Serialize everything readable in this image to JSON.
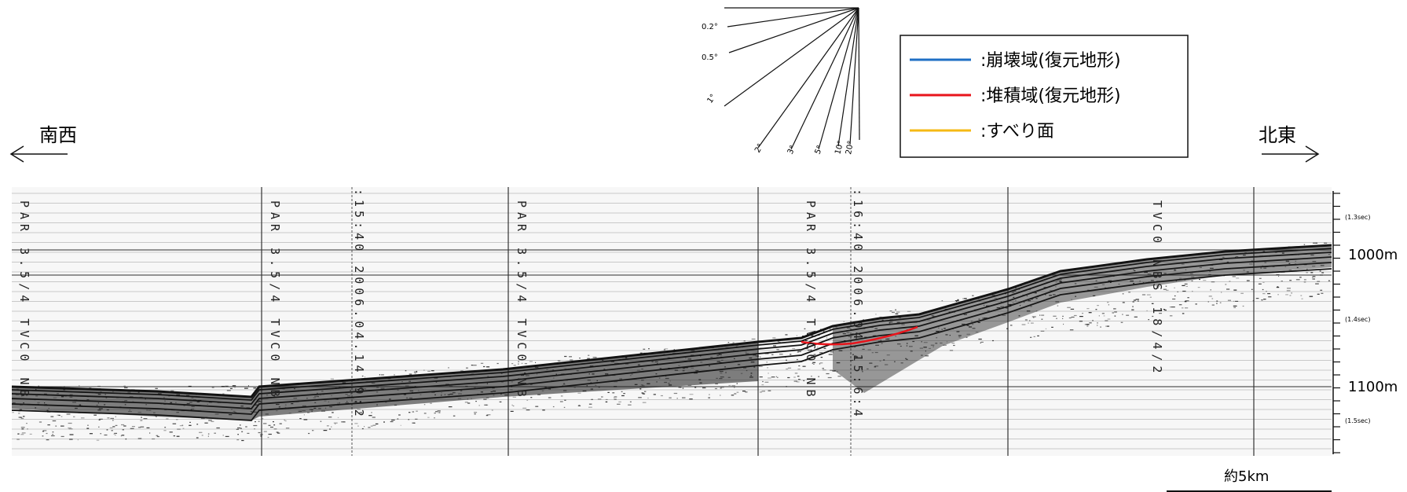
{
  "directions": {
    "left_label": "南西",
    "right_label": "北東"
  },
  "slope_scale": {
    "angles": [
      "0.2°",
      "0.5°",
      "1°",
      "2°",
      "3°",
      "5°",
      "10°",
      "20°"
    ]
  },
  "legend": {
    "items": [
      {
        "label": ":崩壊域(復元地形)",
        "color": "#1f6fc5"
      },
      {
        "label": ":堆積域(復元地形)",
        "color": "#e8141b"
      },
      {
        "label": ":すべり面",
        "color": "#f5b914"
      }
    ]
  },
  "depth_axis": {
    "major_labels": [
      "1000m",
      "1100m"
    ],
    "time_labels": [
      "(1.3sec)",
      "(1.4sec)",
      "(1.5sec)"
    ]
  },
  "scale_bar": {
    "label": "約5km"
  },
  "profile_annotations": {
    "fix_labels": [
      "PAR 3.5/4 TVC0 NB",
      "PAR 3.5/4 TVC0 NB",
      "PAR 3.5/4 TVC0 NB",
      "PAR 3.5/4 TVC0 NB"
    ],
    "time_stamps": [
      ":15:40 2006.04.14:9:2",
      ":16:40 2006.04.15:6:4"
    ],
    "right_label": "TVC0 NBS 18/4/2"
  },
  "colors": {
    "deposit_line": "#e8141b",
    "grid": "#8a8a8a"
  }
}
